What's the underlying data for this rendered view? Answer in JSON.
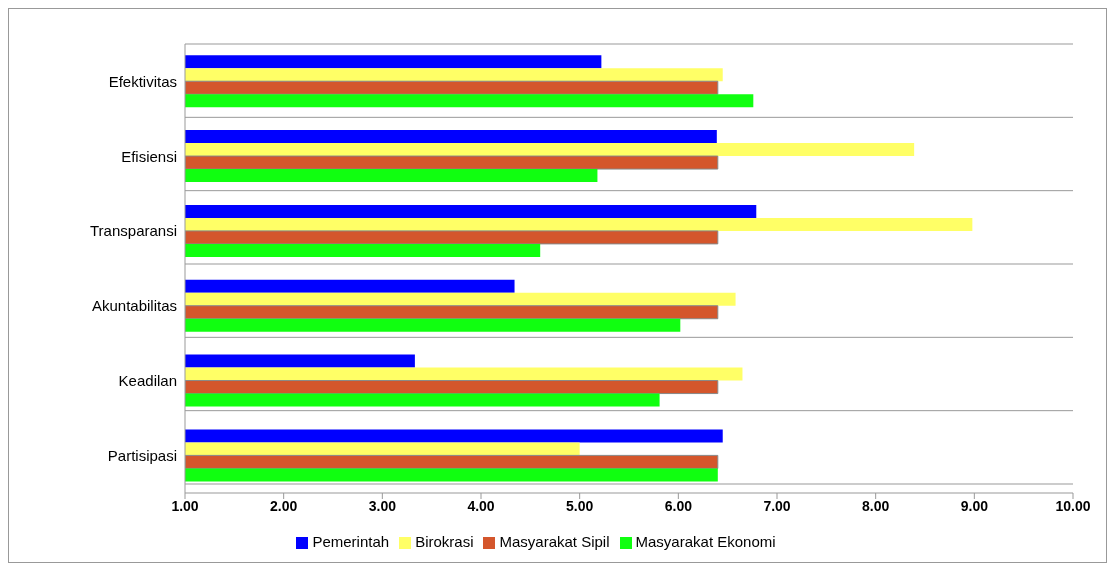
{
  "chart_data": {
    "type": "bar",
    "orientation": "horizontal",
    "categories": [
      "Efektivitas",
      "Efisiensi",
      "Transparansi",
      "Akuntabilitas",
      "Keadilan",
      "Partisipasi"
    ],
    "series": [
      {
        "name": "Pemerintah",
        "color": "#0000ff",
        "values": [
          5.22,
          6.39,
          6.79,
          4.34,
          3.33,
          6.45
        ]
      },
      {
        "name": "Birokrasi",
        "color": "#ffff66",
        "values": [
          6.45,
          8.39,
          8.98,
          6.58,
          6.65,
          5.0
        ]
      },
      {
        "name": "Masyarakat Sipil",
        "color": "#d4562c",
        "values": [
          6.4,
          6.4,
          6.4,
          6.4,
          6.4,
          6.4
        ]
      },
      {
        "name": "Masyarakat Ekonomi",
        "color": "#10ff10",
        "values": [
          6.76,
          5.18,
          4.6,
          6.02,
          5.81,
          6.4
        ]
      }
    ],
    "xlim": [
      1,
      10
    ],
    "xticks": [
      {
        "value": 1,
        "label": "1.00"
      },
      {
        "value": 2,
        "label": "2.00"
      },
      {
        "value": 3,
        "label": "3.00"
      },
      {
        "value": 4,
        "label": "4.00"
      },
      {
        "value": 5,
        "label": "5.00"
      },
      {
        "value": 6,
        "label": "6.00"
      },
      {
        "value": 7,
        "label": "7.00"
      },
      {
        "value": 8,
        "label": "8.00"
      },
      {
        "value": 9,
        "label": "9.00"
      },
      {
        "value": 10,
        "label": "10.00"
      }
    ],
    "grid": "y",
    "legend": "bottom"
  }
}
